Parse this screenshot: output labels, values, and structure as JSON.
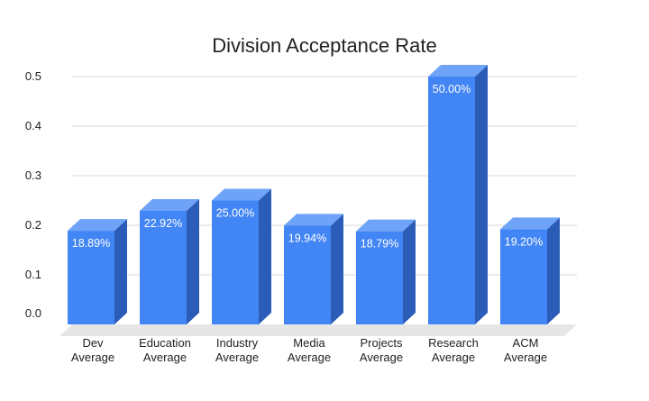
{
  "chart_data": {
    "type": "bar",
    "title": "Division Acceptance Rate",
    "xlabel": "",
    "ylabel": "",
    "categories": [
      [
        "Dev",
        "Average"
      ],
      [
        "Education",
        "Average"
      ],
      [
        "Industry",
        "Average"
      ],
      [
        "Media",
        "Average"
      ],
      [
        "Projects",
        "Average"
      ],
      [
        "Research",
        "Average"
      ],
      [
        "ACM",
        "Average"
      ]
    ],
    "values": [
      0.1889,
      0.2292,
      0.25,
      0.1994,
      0.1879,
      0.5,
      0.192
    ],
    "data_labels": [
      "18.89%",
      "22.92%",
      "25.00%",
      "19.94%",
      "18.79%",
      "50.00%",
      "19.20%"
    ],
    "y_ticks": [
      "0.0",
      "0.1",
      "0.2",
      "0.3",
      "0.4",
      "0.5"
    ],
    "ylim": [
      0,
      0.5
    ],
    "grid": true,
    "legend": "none",
    "style": "3d",
    "colors": {
      "bar_front": "#4285f4",
      "bar_top": "#6ea3f7",
      "bar_side": "#2a5cb8",
      "floor": "#e6e6e6",
      "grid": "#d9d9d9",
      "label_inside": "#ffffff",
      "text": "#222222"
    }
  }
}
